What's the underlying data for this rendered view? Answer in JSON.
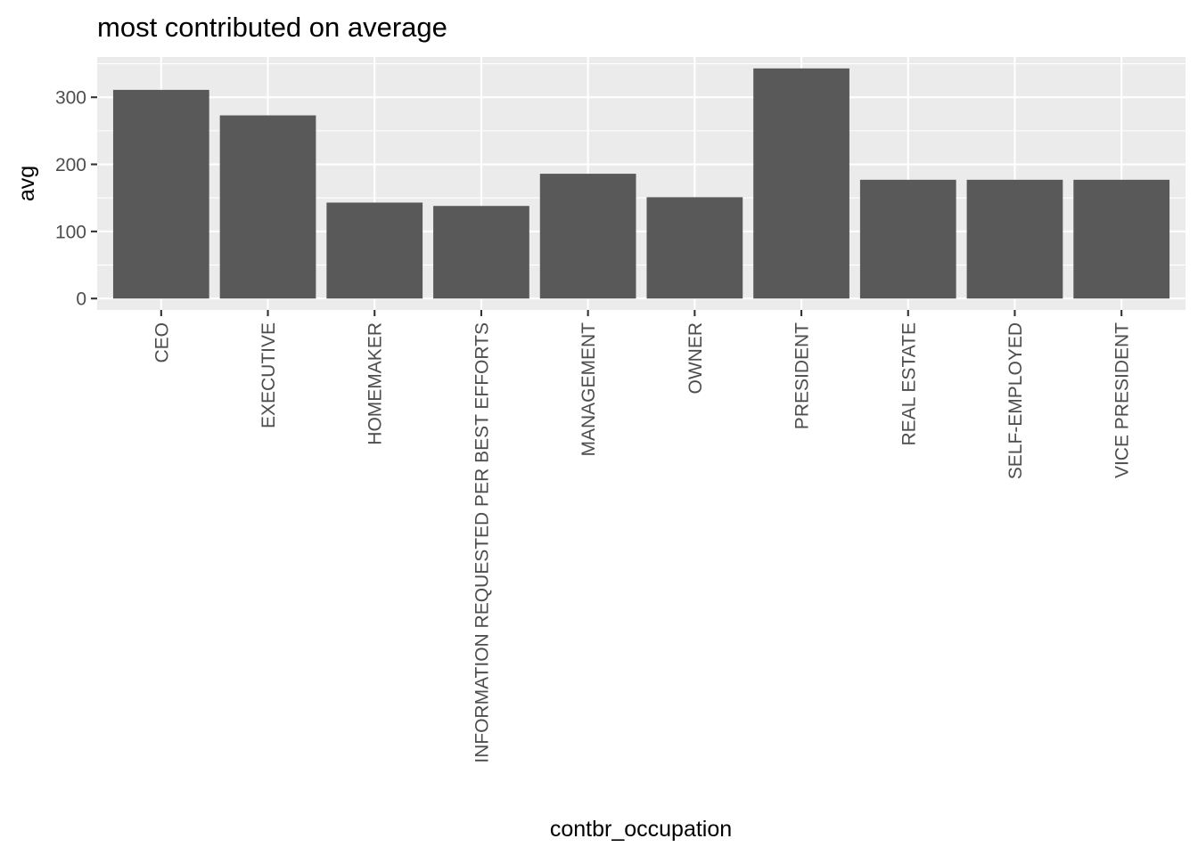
{
  "chart_data": {
    "type": "bar",
    "title": "most contributed on average",
    "xlabel": "contbr_occupation",
    "ylabel": "avg",
    "categories": [
      "CEO",
      "EXECUTIVE",
      "HOMEMAKER",
      "INFORMATION REQUESTED PER BEST EFFORTS",
      "MANAGEMENT",
      "OWNER",
      "PRESIDENT",
      "REAL ESTATE",
      "SELF-EMPLOYED",
      "VICE PRESIDENT"
    ],
    "values": [
      311,
      273,
      143,
      138,
      186,
      151,
      343,
      177,
      177,
      177
    ],
    "yticks": [
      0,
      100,
      200,
      300
    ],
    "ylim": [
      -17,
      360
    ],
    "grid": true,
    "legend": "none",
    "colors": {
      "bar": "#595959",
      "panel": "#ebebeb",
      "grid": "#ffffff"
    }
  }
}
